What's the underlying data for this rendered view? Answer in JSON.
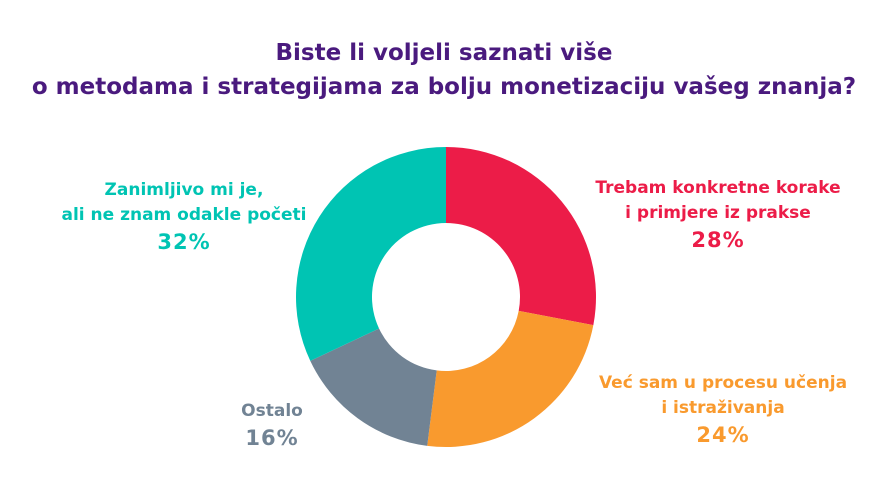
{
  "chart_data": {
    "type": "pie",
    "title_line1": "Biste li voljeli saznati više",
    "title_line2": "o metodama i strategijama za bolju monetizaciju vašeg znanja?",
    "slices": [
      {
        "line1": "Trebam konkretne korake",
        "line2": "i primjere iz prakse",
        "value": 28,
        "pct_label": "28%",
        "color": "#ec1c48"
      },
      {
        "line1": "Već sam u procesu učenja",
        "line2": "i istraživanja",
        "value": 24,
        "pct_label": "24%",
        "color": "#f99a2e"
      },
      {
        "line1": "Ostalo",
        "line2": "",
        "value": 16,
        "pct_label": "16%",
        "color": "#718394"
      },
      {
        "line1": "Zanimljivo mi je,",
        "line2": "ali ne znam odakle početi",
        "value": 32,
        "pct_label": "32%",
        "color": "#00c4b3"
      }
    ],
    "title_color": "#4a1a7e"
  }
}
